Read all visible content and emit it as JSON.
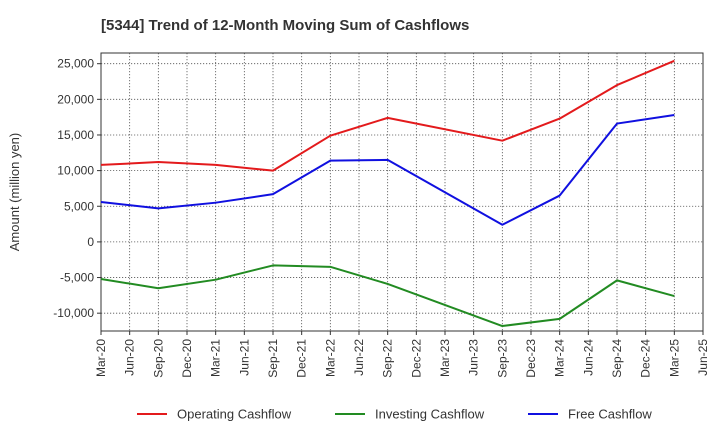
{
  "chart_data": {
    "type": "line",
    "title": "[5344]  Trend of 12-Month Moving Sum of Cashflows",
    "ylabel": "Amount (million yen)",
    "xlabel": "",
    "x_ticks": [
      "Mar-20",
      "Jun-20",
      "Sep-20",
      "Dec-20",
      "Mar-21",
      "Jun-21",
      "Sep-21",
      "Dec-21",
      "Mar-22",
      "Jun-22",
      "Sep-22",
      "Dec-22",
      "Mar-23",
      "Jun-23",
      "Sep-23",
      "Dec-23",
      "Mar-24",
      "Jun-24",
      "Sep-24",
      "Dec-24",
      "Mar-25",
      "Jun-25"
    ],
    "y_ticks": [
      25000,
      20000,
      15000,
      10000,
      5000,
      0,
      -5000,
      -10000
    ],
    "y_tick_labels": [
      "25,000",
      "20,000",
      "15,000",
      "10,000",
      "5,000",
      "0",
      "-5,000",
      "-10,000"
    ],
    "ylim": [
      -12500,
      26500
    ],
    "grid": true,
    "legend_position": "bottom",
    "series": [
      {
        "name": "Operating Cashflow",
        "color": "#e31a1c",
        "points": [
          {
            "x": "Mar-20",
            "y": 10800
          },
          {
            "x": "Sep-20",
            "y": 11200
          },
          {
            "x": "Mar-21",
            "y": 10800
          },
          {
            "x": "Sep-21",
            "y": 10000
          },
          {
            "x": "Mar-22",
            "y": 14900
          },
          {
            "x": "Sep-22",
            "y": 17400
          },
          {
            "x": "Sep-23",
            "y": 14200
          },
          {
            "x": "Mar-24",
            "y": 17300
          },
          {
            "x": "Sep-24",
            "y": 22000
          },
          {
            "x": "Mar-25",
            "y": 25400
          }
        ]
      },
      {
        "name": "Investing Cashflow",
        "color": "#228b22",
        "points": [
          {
            "x": "Mar-20",
            "y": -5200
          },
          {
            "x": "Sep-20",
            "y": -6500
          },
          {
            "x": "Mar-21",
            "y": -5300
          },
          {
            "x": "Sep-21",
            "y": -3300
          },
          {
            "x": "Mar-22",
            "y": -3500
          },
          {
            "x": "Sep-22",
            "y": -5900
          },
          {
            "x": "Sep-23",
            "y": -11800
          },
          {
            "x": "Mar-24",
            "y": -10800
          },
          {
            "x": "Sep-24",
            "y": -5400
          },
          {
            "x": "Mar-25",
            "y": -7600
          }
        ]
      },
      {
        "name": "Free Cashflow",
        "color": "#1010e0",
        "points": [
          {
            "x": "Mar-20",
            "y": 5600
          },
          {
            "x": "Sep-20",
            "y": 4700
          },
          {
            "x": "Mar-21",
            "y": 5500
          },
          {
            "x": "Sep-21",
            "y": 6700
          },
          {
            "x": "Mar-22",
            "y": 11400
          },
          {
            "x": "Sep-22",
            "y": 11500
          },
          {
            "x": "Sep-23",
            "y": 2400
          },
          {
            "x": "Mar-24",
            "y": 6500
          },
          {
            "x": "Sep-24",
            "y": 16600
          },
          {
            "x": "Mar-25",
            "y": 17800
          }
        ]
      }
    ]
  }
}
